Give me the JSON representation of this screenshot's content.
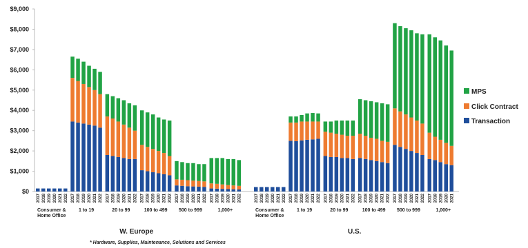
{
  "chart_data": {
    "type": "bar",
    "stacked": true,
    "footnote": "* Hardware, Supplies, Maintenance, Solutions and Services",
    "ylim": [
      0,
      9000
    ],
    "yticks": [
      {
        "value": 0,
        "label": "$0"
      },
      {
        "value": 1000,
        "label": "$1,000"
      },
      {
        "value": 2000,
        "label": "$2,000"
      },
      {
        "value": 3000,
        "label": "$3,000"
      },
      {
        "value": 4000,
        "label": "$4,000"
      },
      {
        "value": 5000,
        "label": "$5,000"
      },
      {
        "value": 6000,
        "label": "$6,000"
      },
      {
        "value": 7000,
        "label": "$7,000"
      },
      {
        "value": 8000,
        "label": "$8,000"
      },
      {
        "value": 9000,
        "label": "$9,000"
      }
    ],
    "series": [
      {
        "name": "MPS",
        "color": "#21a345"
      },
      {
        "name": "Click Contract",
        "color": "#ee7b30"
      },
      {
        "name": "Transaction",
        "color": "#1f4e9b"
      }
    ],
    "regions": [
      {
        "name": "W. Europe",
        "segments": [
          {
            "name": "Consumer & Home Office",
            "categories": [
              "2017",
              "2018",
              "2019",
              "2020",
              "2021",
              "2022"
            ],
            "series": [
              {
                "values": [
                  0,
                  0,
                  0,
                  0,
                  0,
                  0
                ]
              },
              {
                "values": [
                  0,
                  0,
                  0,
                  0,
                  0,
                  0
                ]
              },
              {
                "values": [
                  150,
                  150,
                  150,
                  150,
                  150,
                  150
                ]
              }
            ]
          },
          {
            "name": "1 to 19",
            "categories": [
              "2017",
              "2018",
              "2019",
              "2020",
              "2021",
              "2022"
            ],
            "series": [
              {
                "values": [
                  1050,
                  1100,
                  1100,
                  1050,
                  1050,
                  1100
                ]
              },
              {
                "values": [
                  2150,
                  2050,
                  1950,
                  1850,
                  1750,
                  1650
                ]
              },
              {
                "values": [
                  3450,
                  3400,
                  3350,
                  3300,
                  3250,
                  3150
                ]
              }
            ]
          },
          {
            "name": "20 to 99",
            "categories": [
              "2017",
              "2018",
              "2019",
              "2020",
              "2021",
              "2022"
            ],
            "series": [
              {
                "values": [
                  1100,
                  1100,
                  1150,
                  1200,
                  1200,
                  1250
                ]
              },
              {
                "values": [
                  1900,
                  1850,
                  1750,
                  1650,
                  1550,
                  1400
                ]
              },
              {
                "values": [
                  1800,
                  1750,
                  1700,
                  1650,
                  1600,
                  1600
                ]
              }
            ]
          },
          {
            "name": "100 to 499",
            "categories": [
              "2017",
              "2018",
              "2019",
              "2020",
              "2021",
              "2022"
            ],
            "series": [
              {
                "values": [
                  1700,
                  1700,
                  1700,
                  1650,
                  1650,
                  1750
                ]
              },
              {
                "values": [
                  1250,
                  1200,
                  1150,
                  1100,
                  1050,
                  950
                ]
              },
              {
                "values": [
                  1050,
                  1000,
                  950,
                  900,
                  850,
                  800
                ]
              }
            ]
          },
          {
            "name": "500 to 999",
            "categories": [
              "2017",
              "2018",
              "2019",
              "2020",
              "2021",
              "2022"
            ],
            "series": [
              {
                "values": [
                  900,
                  870,
                  840,
                  860,
                  830,
                  850
                ]
              },
              {
                "values": [
                  300,
                  300,
                  300,
                  290,
                  280,
                  270
                ]
              },
              {
                "values": [
                  300,
                  280,
                  260,
                  250,
                  240,
                  230
                ]
              }
            ]
          },
          {
            "name": "1,000+",
            "categories": [
              "2017",
              "2018",
              "2019",
              "2020",
              "2021",
              "2022"
            ],
            "series": [
              {
                "values": [
                  1250,
                  1270,
                  1300,
                  1280,
                  1300,
                  1270
                ]
              },
              {
                "values": [
                  250,
                  240,
                  220,
                  200,
                  190,
                  180
                ]
              },
              {
                "values": [
                  150,
                  140,
                  130,
                  120,
                  110,
                  100
                ]
              }
            ]
          }
        ]
      },
      {
        "name": "U.S.",
        "segments": [
          {
            "name": "Consumer & Home Office",
            "categories": [
              "2017",
              "2018",
              "2019",
              "2020",
              "2021",
              "2022"
            ],
            "series": [
              {
                "values": [
                  0,
                  0,
                  0,
                  0,
                  0,
                  0
                ]
              },
              {
                "values": [
                  0,
                  0,
                  0,
                  0,
                  0,
                  0
                ]
              },
              {
                "values": [
                  220,
                  220,
                  220,
                  220,
                  220,
                  220
                ]
              }
            ]
          },
          {
            "name": "1 to 19",
            "categories": [
              "2017",
              "2018",
              "2019",
              "2020",
              "2021",
              "2022"
            ],
            "series": [
              {
                "values": [
                  300,
                  300,
                  320,
                  400,
                  420,
                  400
                ]
              },
              {
                "values": [
                  900,
                  920,
                  930,
                  900,
                  880,
                  850
                ]
              },
              {
                "values": [
                  2500,
                  2480,
                  2520,
                  2550,
                  2570,
                  2600
                ]
              }
            ]
          },
          {
            "name": "20 to 99",
            "categories": [
              "2017",
              "2018",
              "2019",
              "2020",
              "2021",
              "2022"
            ],
            "series": [
              {
                "values": [
                  500,
                  550,
                  650,
                  700,
                  750,
                  750
                ]
              },
              {
                "values": [
                  1200,
                  1200,
                  1150,
                  1150,
                  1100,
                  1150
                ]
              },
              {
                "values": [
                  1750,
                  1700,
                  1700,
                  1650,
                  1650,
                  1600
                ]
              }
            ]
          },
          {
            "name": "100 to 499",
            "categories": [
              "2017",
              "2018",
              "2019",
              "2020",
              "2021",
              "2022"
            ],
            "series": [
              {
                "values": [
                  1700,
                  1750,
                  1800,
                  1800,
                  1850,
                  1850
                ]
              },
              {
                "values": [
                  1200,
                  1150,
                  1100,
                  1100,
                  1050,
                  1050
                ]
              },
              {
                "values": [
                  1650,
                  1600,
                  1550,
                  1500,
                  1450,
                  1400
                ]
              }
            ]
          },
          {
            "name": "500 to 999",
            "categories": [
              "2017",
              "2018",
              "2019",
              "2020",
              "2021",
              "2022"
            ],
            "series": [
              {
                "values": [
                  4200,
                  4200,
                  4250,
                  4300,
                  4300,
                  4400
                ]
              },
              {
                "values": [
                  1800,
                  1750,
                  1700,
                  1650,
                  1600,
                  1550
                ]
              },
              {
                "values": [
                  2300,
                  2200,
                  2100,
                  2000,
                  1900,
                  1800
                ]
              }
            ]
          },
          {
            "name": "1,000+",
            "categories": [
              "2017",
              "2018",
              "2019",
              "2020",
              "2021"
            ],
            "series": [
              {
                "values": [
                  4850,
                  4900,
                  4900,
                  4800,
                  4700
                ]
              },
              {
                "values": [
                  1300,
                  1150,
                  1100,
                  1050,
                  950
                ]
              },
              {
                "values": [
                  1600,
                  1550,
                  1450,
                  1350,
                  1300
                ]
              }
            ]
          }
        ]
      }
    ]
  }
}
